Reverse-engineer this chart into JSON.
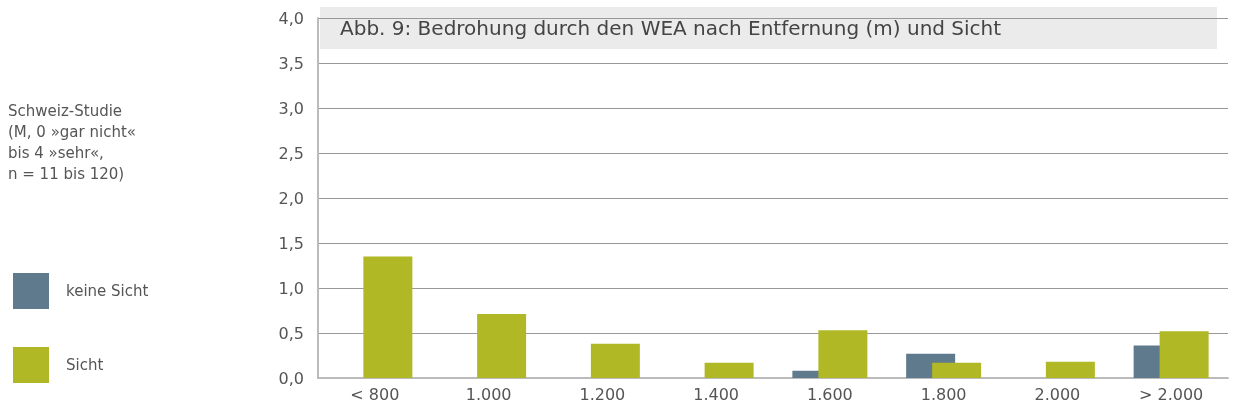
{
  "chart_data": {
    "type": "bar",
    "title": "Abb. 9: Bedrohung durch den WEA nach Entfernung (m) und Sicht",
    "annotations": [
      "Schweiz-Studie\n(M, 0 »gar nicht«\nbis 4 »sehr«,\nn = 11 bis 120)"
    ],
    "categories": [
      "< 800",
      "1.000",
      "1.200",
      "1.400",
      "1.600",
      "1.800",
      "2.000",
      "> 2.000"
    ],
    "series": [
      {
        "name": "keine Sicht",
        "color": "#5f7a8c",
        "values": [
          null,
          null,
          null,
          null,
          0.08,
          0.27,
          null,
          0.36
        ]
      },
      {
        "name": "Sicht",
        "color": "#b0b826",
        "values": [
          1.35,
          0.71,
          0.38,
          0.17,
          0.53,
          0.17,
          0.18,
          0.52
        ]
      }
    ],
    "ylim": [
      0,
      4
    ],
    "yticks": [
      {
        "value": 0,
        "label": "0,0"
      },
      {
        "value": 0.5,
        "label": "0,5"
      },
      {
        "value": 1,
        "label": "1,0"
      },
      {
        "value": 1.5,
        "label": "1,5"
      },
      {
        "value": 2,
        "label": "2,0"
      },
      {
        "value": 2.5,
        "label": "2,5"
      },
      {
        "value": 3,
        "label": "3,0"
      },
      {
        "value": 3.5,
        "label": "3,5"
      },
      {
        "value": 4,
        "label": "4,0"
      }
    ],
    "grid": "y",
    "legend": "left"
  }
}
